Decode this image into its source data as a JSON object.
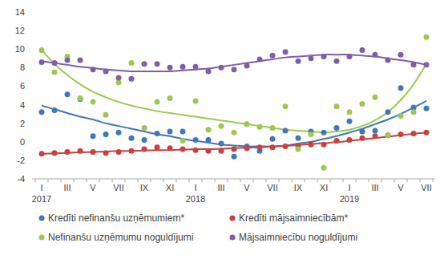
{
  "chart_data": {
    "type": "scatter",
    "categories": [
      "I",
      null,
      "III",
      null,
      "V",
      null,
      "VII",
      null,
      "IX",
      null,
      "XI",
      null,
      "I",
      null,
      "III",
      null,
      "V",
      null,
      "VII",
      null,
      "IX",
      null,
      "XI",
      null,
      "I",
      null,
      "III",
      null,
      "V",
      null,
      "VII"
    ],
    "year_labels": [
      "2017",
      "2018",
      "2019"
    ],
    "ylim": [
      -4,
      14
    ],
    "yticks": [
      -4,
      -2,
      0,
      2,
      4,
      6,
      8,
      10,
      12,
      14
    ],
    "grid": false,
    "legend": "bottom",
    "marker": "circle",
    "series": [
      {
        "name": "Kredīti nefinanšu uzņēmumiem*",
        "color": "#3f77b9",
        "values": [
          3.2,
          3.4,
          5.1,
          4.6,
          0.6,
          0.8,
          1.0,
          0.4,
          0.2,
          0.9,
          1.1,
          1.1,
          0.2,
          0.2,
          -0.2,
          -1.6,
          -0.5,
          -1.0,
          0.3,
          1.2,
          0.4,
          1.1,
          1.0,
          1.5,
          2.2,
          1.1,
          1.2,
          3.2,
          5.8,
          3.7,
          3.6
        ],
        "trend": [
          3.9,
          3.5,
          3.1,
          2.7,
          2.4,
          2.0,
          1.7,
          1.4,
          1.1,
          0.8,
          0.6,
          0.3,
          0.1,
          -0.1,
          -0.3,
          -0.4,
          -0.5,
          -0.5,
          -0.5,
          -0.4,
          -0.2,
          0.0,
          0.3,
          0.6,
          1.0,
          1.4,
          1.9,
          2.4,
          3.0,
          3.7,
          4.4
        ]
      },
      {
        "name": "Kredīti mājsaimniecībām*",
        "color": "#c9403c",
        "values": [
          -1.3,
          -1.2,
          -1.1,
          -1.0,
          -1.1,
          -1.2,
          -1.1,
          -1.0,
          -0.8,
          -0.6,
          -0.7,
          -0.8,
          -0.9,
          -1.0,
          -1.0,
          -0.8,
          -0.7,
          -0.6,
          -0.6,
          -0.5,
          -0.5,
          -0.3,
          -0.3,
          0.1,
          0.2,
          0.4,
          0.6,
          0.7,
          0.8,
          0.9,
          1.0
        ],
        "trend": [
          -1.3,
          -1.25,
          -1.2,
          -1.15,
          -1.1,
          -1.05,
          -1.0,
          -1.0,
          -0.95,
          -0.9,
          -0.9,
          -0.85,
          -0.8,
          -0.8,
          -0.75,
          -0.7,
          -0.65,
          -0.6,
          -0.5,
          -0.45,
          -0.35,
          -0.25,
          -0.15,
          -0.05,
          0.1,
          0.25,
          0.4,
          0.55,
          0.7,
          0.85,
          1.0
        ]
      },
      {
        "name": "Nefinanšu uzņēmumu noguldījumi",
        "color": "#9bc94f",
        "values": [
          9.9,
          7.5,
          9.2,
          4.7,
          4.3,
          2.9,
          6.4,
          8.5,
          1.5,
          4.3,
          4.7,
          0.1,
          4.4,
          1.3,
          1.7,
          1.0,
          1.9,
          1.6,
          1.5,
          3.8,
          -0.8,
          0.8,
          -2.8,
          3.8,
          3.2,
          4.1,
          4.8,
          0.7,
          2.8,
          3.2,
          11.3
        ],
        "trend": [
          9.9,
          8.4,
          7.2,
          6.2,
          5.4,
          4.8,
          4.3,
          3.9,
          3.6,
          3.3,
          3.1,
          2.9,
          2.7,
          2.5,
          2.3,
          2.1,
          1.9,
          1.7,
          1.5,
          1.3,
          1.2,
          1.1,
          1.0,
          1.1,
          1.3,
          1.7,
          2.3,
          3.2,
          4.5,
          6.2,
          8.4
        ]
      },
      {
        "name": "Mājsaimniecību noguldījumi",
        "color": "#7f5ea8",
        "values": [
          8.6,
          8.5,
          8.8,
          8.8,
          7.8,
          7.6,
          6.9,
          6.8,
          8.4,
          8.4,
          8.0,
          8.1,
          8.1,
          7.6,
          8.0,
          7.8,
          8.2,
          8.9,
          9.3,
          9.7,
          8.7,
          9.0,
          9.2,
          8.7,
          9.2,
          9.9,
          9.4,
          8.8,
          9.4,
          8.3,
          8.3
        ],
        "trend": [
          8.7,
          8.5,
          8.3,
          8.1,
          7.95,
          7.8,
          7.7,
          7.6,
          7.6,
          7.6,
          7.6,
          7.7,
          7.8,
          7.9,
          8.1,
          8.3,
          8.5,
          8.7,
          8.9,
          9.1,
          9.2,
          9.3,
          9.4,
          9.4,
          9.4,
          9.3,
          9.2,
          9.0,
          8.8,
          8.6,
          8.3
        ]
      }
    ]
  }
}
